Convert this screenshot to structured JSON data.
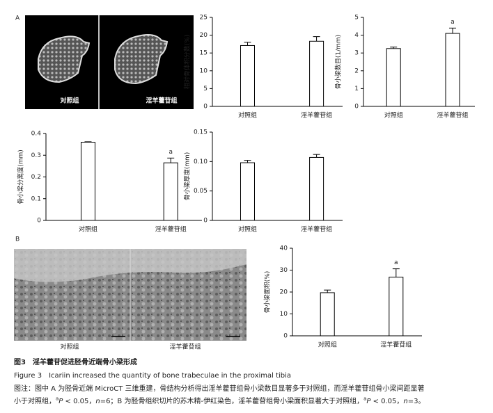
{
  "panels": {
    "a": "A",
    "b": "B"
  },
  "microct": {
    "left": "对照组",
    "right": "淫羊藿苷组"
  },
  "histology": {
    "left": "对照组",
    "right": "淫羊藿苷组"
  },
  "chart_data": [
    {
      "type": "bar",
      "ylabel": "相对骨体积分数(%)",
      "categories": [
        "对照组",
        "淫羊藿苷组"
      ],
      "values": [
        17.1,
        18.3
      ],
      "errors": [
        0.9,
        1.3
      ],
      "annotations": [
        null,
        null
      ],
      "color": "#ffffff",
      "ylim": [
        0,
        25
      ],
      "yticks": [
        0,
        5,
        10,
        15,
        20,
        25
      ]
    },
    {
      "type": "bar",
      "ylabel": "骨小梁数目(1/mm)",
      "categories": [
        "对照组",
        "淫羊藿苷组"
      ],
      "values": [
        3.25,
        4.1
      ],
      "errors": [
        0.08,
        0.3
      ],
      "annotations": [
        null,
        "a"
      ],
      "color": "#ffffff",
      "ylim": [
        0,
        5
      ],
      "yticks": [
        0,
        1,
        2,
        3,
        4,
        5
      ]
    },
    {
      "type": "bar",
      "ylabel": "骨小梁分离度(mm)",
      "categories": [
        "对照组",
        "淫羊藿苷组"
      ],
      "values": [
        0.36,
        0.265
      ],
      "errors": [
        0.002,
        0.022
      ],
      "annotations": [
        null,
        "a"
      ],
      "color": "#ffffff",
      "ylim": [
        0,
        0.4
      ],
      "yticks": [
        0,
        0.1,
        0.2,
        0.3,
        0.4
      ]
    },
    {
      "type": "bar",
      "ylabel": "骨小梁厚度(mm)",
      "categories": [
        "对照组",
        "淫羊藿苷组"
      ],
      "values": [
        0.098,
        0.107
      ],
      "errors": [
        0.004,
        0.005
      ],
      "annotations": [
        null,
        null
      ],
      "color": "#ffffff",
      "ylim": [
        0,
        0.15
      ],
      "yticks": [
        0,
        0.05,
        {
          "value": 0.1,
          "label": "0.10"
        },
        0.15
      ]
    },
    {
      "type": "bar",
      "ylabel": "骨小梁面积(%)",
      "categories": [
        "对照组",
        "淫羊藿苷组"
      ],
      "values": [
        19.7,
        26.8
      ],
      "errors": [
        1.2,
        3.8
      ],
      "annotations": [
        null,
        "a"
      ],
      "color": "#ffffff",
      "ylim": [
        0,
        40
      ],
      "yticks": [
        0,
        10,
        20,
        30,
        40
      ]
    }
  ],
  "caption": {
    "title_cn": "图3　淫羊藿苷促进胫骨近端骨小梁形成",
    "title_en": "Figure 3　Icariin increased the quantity of bone trabeculae in the proximal tibia",
    "note_line1": "图注：图中 A 为胫骨近端 MicroCT 三维重建，骨结构分析得出淫羊藿苷组骨小梁数目显著多于对照组，而淫羊藿苷组骨小梁间距显著",
    "note_line2": [
      "小于对照组，",
      "a",
      "P",
      " < 0.05，",
      "n",
      "=6；B 为胫骨组织切片的苏木精-伊红染色，淫羊藿苷组骨小梁面积显著大于对照组，",
      "a",
      "P",
      " < 0.05，",
      "n",
      "=3。"
    ]
  }
}
